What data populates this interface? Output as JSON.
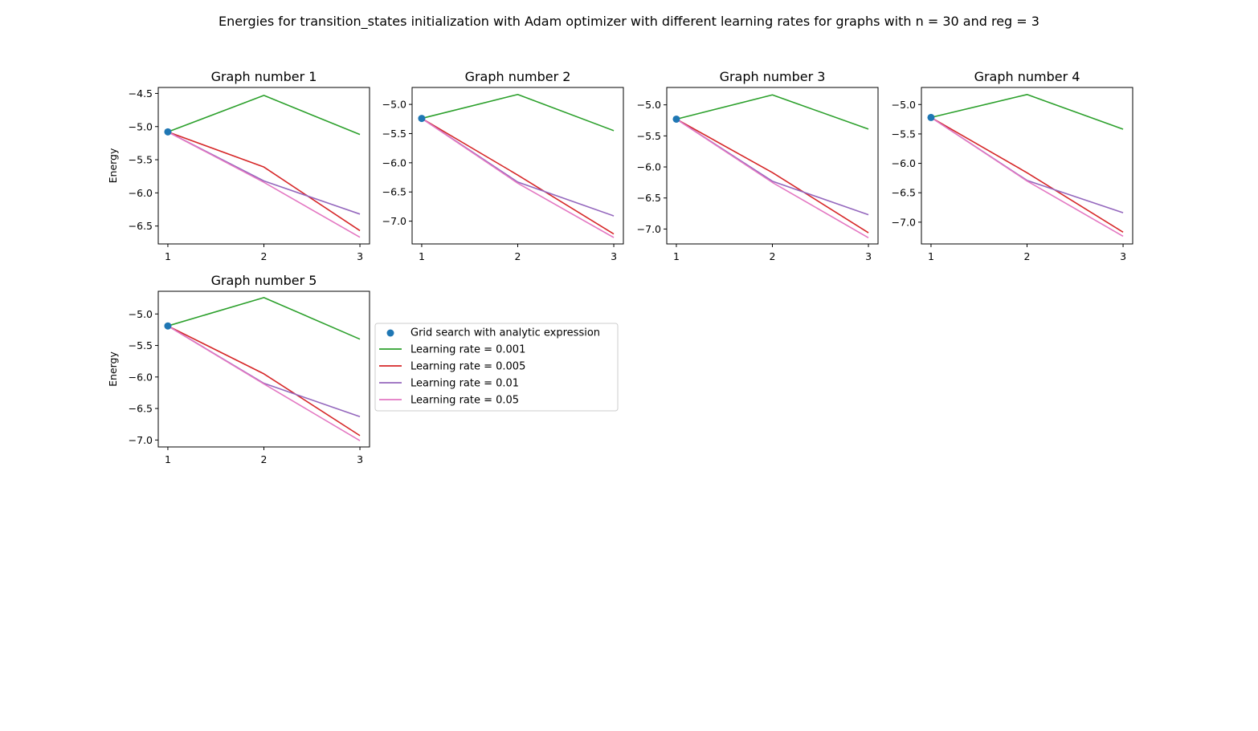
{
  "figure": {
    "title": "Energies for transition_states initialization with Adam optimizer with different learning rates for graphs with n = 30 and reg = 3"
  },
  "colors": {
    "grid_search": "#1f77b4",
    "lr_0.001": "#2ca02c",
    "lr_0.005": "#d62728",
    "lr_0.01": "#9467bd",
    "lr_0.05": "#e377c2"
  },
  "legend": {
    "placement": "right of Graph number 5",
    "entries": [
      {
        "label": "Grid search with analytic expression",
        "kind": "scatter",
        "color": "#1f77b4"
      },
      {
        "label": "Learning rate = 0.001",
        "kind": "line",
        "color": "#2ca02c"
      },
      {
        "label": "Learning rate = 0.005",
        "kind": "line",
        "color": "#d62728"
      },
      {
        "label": "Learning rate = 0.01",
        "kind": "line",
        "color": "#9467bd"
      },
      {
        "label": "Learning rate = 0.05",
        "kind": "line",
        "color": "#e377c2"
      }
    ]
  },
  "chart_data": [
    {
      "type": "line",
      "title": "Graph number 1",
      "ylabel": "Energy",
      "x": [
        1,
        2,
        3
      ],
      "xticks": [
        1,
        2,
        3
      ],
      "ylim": [
        -6.77,
        -4.41
      ],
      "yticks": [
        -6.5,
        -6.0,
        -5.5,
        -5.0,
        -4.5
      ],
      "grid": false,
      "scatter": {
        "name": "Grid search with analytic expression",
        "x": [
          1
        ],
        "y": [
          -5.08
        ]
      },
      "series": [
        {
          "name": "Learning rate = 0.001",
          "color": "#2ca02c",
          "values": [
            -5.08,
            -4.53,
            -5.12
          ]
        },
        {
          "name": "Learning rate = 0.005",
          "color": "#d62728",
          "values": [
            -5.08,
            -5.61,
            -6.57
          ]
        },
        {
          "name": "Learning rate = 0.01",
          "color": "#9467bd",
          "values": [
            -5.08,
            -5.82,
            -6.32
          ]
        },
        {
          "name": "Learning rate = 0.05",
          "color": "#e377c2",
          "values": [
            -5.08,
            -5.84,
            -6.67
          ]
        }
      ]
    },
    {
      "type": "line",
      "title": "Graph number 2",
      "ylabel": "",
      "x": [
        1,
        2,
        3
      ],
      "xticks": [
        1,
        2,
        3
      ],
      "ylim": [
        -7.39,
        -4.71
      ],
      "yticks": [
        -7.0,
        -6.5,
        -6.0,
        -5.5,
        -5.0
      ],
      "grid": false,
      "scatter": {
        "name": "Grid search with analytic expression",
        "x": [
          1
        ],
        "y": [
          -5.24
        ]
      },
      "series": [
        {
          "name": "Learning rate = 0.001",
          "color": "#2ca02c",
          "values": [
            -5.24,
            -4.83,
            -5.45
          ]
        },
        {
          "name": "Learning rate = 0.005",
          "color": "#d62728",
          "values": [
            -5.24,
            -6.21,
            -7.22
          ]
        },
        {
          "name": "Learning rate = 0.01",
          "color": "#9467bd",
          "values": [
            -5.24,
            -6.33,
            -6.91
          ]
        },
        {
          "name": "Learning rate = 0.05",
          "color": "#e377c2",
          "values": [
            -5.24,
            -6.35,
            -7.28
          ]
        }
      ]
    },
    {
      "type": "line",
      "title": "Graph number 3",
      "ylabel": "",
      "x": [
        1,
        2,
        3
      ],
      "xticks": [
        1,
        2,
        3
      ],
      "ylim": [
        -7.24,
        -4.72
      ],
      "yticks": [
        -7.0,
        -6.5,
        -6.0,
        -5.5,
        -5.0
      ],
      "grid": false,
      "scatter": {
        "name": "Grid search with analytic expression",
        "x": [
          1
        ],
        "y": [
          -5.23
        ]
      },
      "series": [
        {
          "name": "Learning rate = 0.001",
          "color": "#2ca02c",
          "values": [
            -5.23,
            -4.84,
            -5.39
          ]
        },
        {
          "name": "Learning rate = 0.005",
          "color": "#d62728",
          "values": [
            -5.23,
            -6.09,
            -7.06
          ]
        },
        {
          "name": "Learning rate = 0.01",
          "color": "#9467bd",
          "values": [
            -5.23,
            -6.23,
            -6.77
          ]
        },
        {
          "name": "Learning rate = 0.05",
          "color": "#e377c2",
          "values": [
            -5.23,
            -6.25,
            -7.14
          ]
        }
      ]
    },
    {
      "type": "line",
      "title": "Graph number 4",
      "ylabel": "",
      "x": [
        1,
        2,
        3
      ],
      "xticks": [
        1,
        2,
        3
      ],
      "ylim": [
        -7.37,
        -4.71
      ],
      "yticks": [
        -7.0,
        -6.5,
        -6.0,
        -5.5,
        -5.0
      ],
      "grid": false,
      "scatter": {
        "name": "Grid search with analytic expression",
        "x": [
          1
        ],
        "y": [
          -5.22
        ]
      },
      "series": [
        {
          "name": "Learning rate = 0.001",
          "color": "#2ca02c",
          "values": [
            -5.22,
            -4.83,
            -5.42
          ]
        },
        {
          "name": "Learning rate = 0.005",
          "color": "#d62728",
          "values": [
            -5.22,
            -6.16,
            -7.17
          ]
        },
        {
          "name": "Learning rate = 0.01",
          "color": "#9467bd",
          "values": [
            -5.22,
            -6.29,
            -6.84
          ]
        },
        {
          "name": "Learning rate = 0.05",
          "color": "#e377c2",
          "values": [
            -5.22,
            -6.3,
            -7.24
          ]
        }
      ]
    },
    {
      "type": "line",
      "title": "Graph number 5",
      "ylabel": "Energy",
      "x": [
        1,
        2,
        3
      ],
      "xticks": [
        1,
        2,
        3
      ],
      "ylim": [
        -7.11,
        -4.64
      ],
      "yticks": [
        -7.0,
        -6.5,
        -6.0,
        -5.5,
        -5.0
      ],
      "grid": false,
      "scatter": {
        "name": "Grid search with analytic expression",
        "x": [
          1
        ],
        "y": [
          -5.19
        ]
      },
      "series": [
        {
          "name": "Learning rate = 0.001",
          "color": "#2ca02c",
          "values": [
            -5.19,
            -4.74,
            -5.4
          ]
        },
        {
          "name": "Learning rate = 0.005",
          "color": "#d62728",
          "values": [
            -5.19,
            -5.95,
            -6.93
          ]
        },
        {
          "name": "Learning rate = 0.01",
          "color": "#9467bd",
          "values": [
            -5.19,
            -6.1,
            -6.63
          ]
        },
        {
          "name": "Learning rate = 0.05",
          "color": "#e377c2",
          "values": [
            -5.19,
            -6.11,
            -7.01
          ]
        }
      ]
    }
  ]
}
